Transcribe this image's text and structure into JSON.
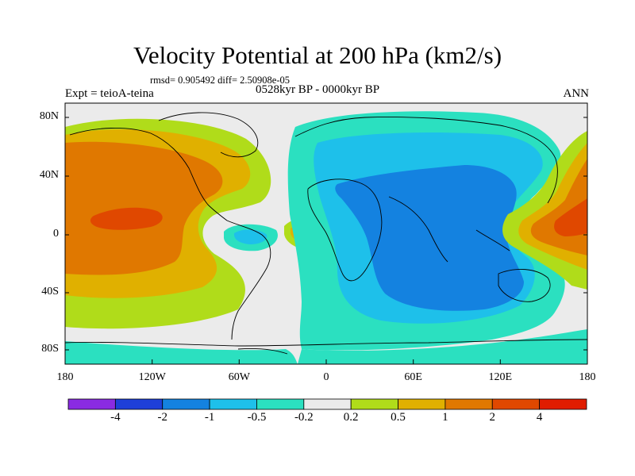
{
  "title": "Velocity Potential at 200 hPa (km2/s)",
  "stats": "rmsd= 0.905492 diff= 2.50908e-05",
  "expt_label": "Expt = teioA-teina",
  "period_label": "0528kyr BP - 0000kyr BP",
  "season": "ANN",
  "lat_labels": [
    "80N",
    "40N",
    "0",
    "40S",
    "80S"
  ],
  "lon_labels": [
    "180",
    "120W",
    "60W",
    "0",
    "60E",
    "120E",
    "180"
  ],
  "colorbar": {
    "levels": [
      "-4",
      "-2",
      "-1",
      "-0.5",
      "-0.2",
      "0.2",
      "0.5",
      "1",
      "2",
      "4"
    ],
    "colors": [
      "#8a2be2",
      "#1e3fd8",
      "#1482e0",
      "#1ec0ea",
      "#2be0c0",
      "#ebebeb",
      "#b0dc1a",
      "#e0b000",
      "#e07800",
      "#e04800",
      "#e01c00"
    ]
  }
}
